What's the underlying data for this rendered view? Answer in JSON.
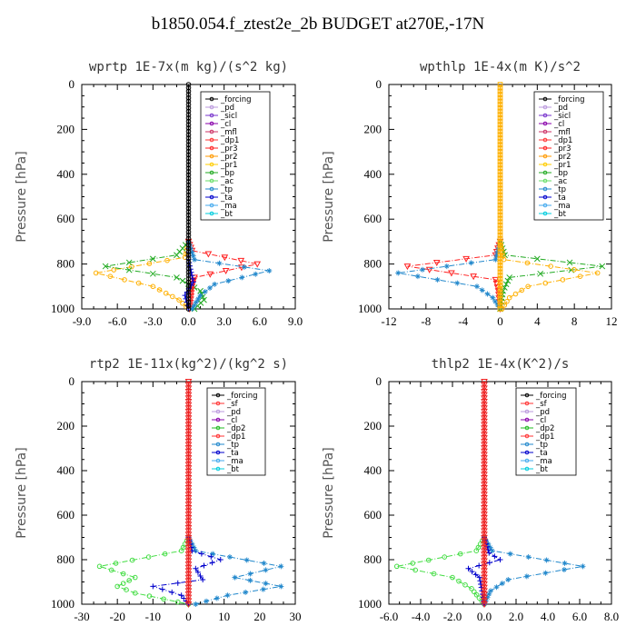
{
  "title": "b1850.054.f_ztest2e_2b  BUDGET at270E,-17N",
  "chart_data": [
    {
      "type": "line",
      "title": "wprtp  1E-7x(m kg)/(s^2 kg)",
      "ylabel": "Pressure [hPa]",
      "xlim": [
        -9,
        9
      ],
      "ylim": [
        1000,
        0
      ],
      "xticks": [
        "-9.0",
        "-6.0",
        "-3.0",
        "0.0",
        "3.0",
        "6.0",
        "9.0"
      ],
      "xtick_values": [
        -9,
        -6,
        -3,
        0,
        3,
        6,
        9
      ],
      "yticks": [
        "0",
        "200",
        "400",
        "600",
        "800",
        "1000"
      ],
      "ytick_values": [
        0,
        200,
        400,
        600,
        800,
        1000
      ],
      "legend": [
        "_forcing",
        "_pd",
        "_sicl",
        "_cl",
        "_mfl",
        "_dp1",
        "_pr3",
        "_pr2",
        "_pr1",
        "_bp",
        "_ac",
        "_tp",
        "_ta",
        "_ma",
        "_bt"
      ],
      "series": [
        {
          "name": "_pr1",
          "color": "#ffb000",
          "marker": "circle",
          "points": [
            [
              0,
              700
            ],
            [
              -0.3,
              770
            ],
            [
              -7.8,
              840
            ],
            [
              -3,
              900
            ],
            [
              -0.8,
              960
            ],
            [
              -0.2,
              990
            ],
            [
              0,
              1000
            ]
          ]
        },
        {
          "name": "_bp",
          "color": "#22aa22",
          "marker": "x",
          "points": [
            [
              0,
              700
            ],
            [
              -1,
              760
            ],
            [
              -7,
              810
            ],
            [
              -1,
              860
            ],
            [
              1,
              920
            ],
            [
              1.3,
              960
            ],
            [
              0.5,
              1000
            ]
          ]
        },
        {
          "name": "_pr3",
          "color": "#ff2222",
          "marker": "triangle",
          "points": [
            [
              0,
              700
            ],
            [
              0.3,
              740
            ],
            [
              5.8,
              800
            ],
            [
              0.5,
              860
            ],
            [
              0.3,
              900
            ],
            [
              0.1,
              1000
            ]
          ]
        },
        {
          "name": "_ta",
          "color": "#0000cc",
          "marker": "plus",
          "points": [
            [
              0,
              700
            ],
            [
              0,
              780
            ],
            [
              0.4,
              880
            ],
            [
              -0.3,
              940
            ],
            [
              0,
              1000
            ]
          ]
        },
        {
          "name": "_tp",
          "color": "#2288cc",
          "marker": "asterisk",
          "points": [
            [
              0,
              700
            ],
            [
              0.5,
              780
            ],
            [
              6.8,
              830
            ],
            [
              2.2,
              890
            ],
            [
              1,
              940
            ],
            [
              0.3,
              1000
            ]
          ]
        },
        {
          "name": "_forcing",
          "color": "#000000",
          "marker": "circle",
          "points": [
            [
              0,
              0
            ],
            [
              0,
              1000
            ]
          ]
        }
      ]
    },
    {
      "type": "line",
      "title": "wpthlp  1E-4x(m K)/s^2",
      "ylabel": "Pressure [hPa]",
      "xlim": [
        -12,
        12
      ],
      "ylim": [
        1000,
        0
      ],
      "xticks": [
        "-12",
        "-8",
        "-4",
        "0",
        "4",
        "8",
        "12"
      ],
      "xtick_values": [
        -12,
        -8,
        -4,
        0,
        4,
        8,
        12
      ],
      "yticks": [
        "0",
        "200",
        "400",
        "600",
        "800",
        "1000"
      ],
      "ytick_values": [
        0,
        200,
        400,
        600,
        800,
        1000
      ],
      "legend": [
        "_forcing",
        "_pd",
        "_sicl",
        "_cl",
        "_mfl",
        "_dp1",
        "_pr3",
        "_pr2",
        "_pr1",
        "_bp",
        "_ac",
        "_tp",
        "_ta",
        "_ma",
        "_bt"
      ],
      "series": [
        {
          "name": "_pr3",
          "color": "#ff2222",
          "marker": "triangle",
          "points": [
            [
              0,
              700
            ],
            [
              -0.5,
              760
            ],
            [
              -10,
              810
            ],
            [
              -0.5,
              870
            ],
            [
              -0.2,
              920
            ],
            [
              0,
              1000
            ]
          ]
        },
        {
          "name": "_tp",
          "color": "#2288cc",
          "marker": "asterisk",
          "points": [
            [
              0,
              700
            ],
            [
              -0.5,
              780
            ],
            [
              -11,
              840
            ],
            [
              -2.5,
              900
            ],
            [
              -0.8,
              950
            ],
            [
              0,
              1000
            ]
          ]
        },
        {
          "name": "_bp",
          "color": "#22aa22",
          "marker": "x",
          "points": [
            [
              0,
              700
            ],
            [
              0.5,
              760
            ],
            [
              11,
              810
            ],
            [
              1,
              860
            ],
            [
              0.3,
              920
            ],
            [
              0,
              1000
            ]
          ]
        },
        {
          "name": "_pr1",
          "color": "#ffb000",
          "marker": "circle",
          "points": [
            [
              0,
              700
            ],
            [
              0.4,
              780
            ],
            [
              10.5,
              840
            ],
            [
              3,
              900
            ],
            [
              1,
              950
            ],
            [
              0.2,
              1000
            ]
          ]
        },
        {
          "name": "_forcing",
          "color": "#ffb000",
          "marker": "square",
          "points": [
            [
              0,
              0
            ],
            [
              0,
              1000
            ]
          ]
        }
      ]
    },
    {
      "type": "line",
      "title": "rtp2  1E-11x(kg^2)/(kg^2 s)",
      "ylabel": "Pressure [hPa]",
      "xlim": [
        -30,
        30
      ],
      "ylim": [
        1000,
        0
      ],
      "xticks": [
        "-30",
        "-20",
        "-10",
        "0",
        "10",
        "20",
        "30"
      ],
      "xtick_values": [
        -30,
        -20,
        -10,
        0,
        10,
        20,
        30
      ],
      "yticks": [
        "0",
        "200",
        "400",
        "600",
        "800",
        "1000"
      ],
      "ytick_values": [
        0,
        200,
        400,
        600,
        800,
        1000
      ],
      "legend": [
        "_forcing",
        "_sf",
        "_pd",
        "_cl",
        "_dp2",
        "_dp1",
        "_tp",
        "_ta",
        "_ma",
        "_bt"
      ],
      "series": [
        {
          "name": "_dp1",
          "color": "#44dd44",
          "marker": "circle",
          "points": [
            [
              0,
              700
            ],
            [
              -2,
              760
            ],
            [
              -25,
              830
            ],
            [
              -15,
              880
            ],
            [
              -20,
              920
            ],
            [
              -15,
              950
            ],
            [
              -3,
              990
            ],
            [
              0,
              1000
            ]
          ]
        },
        {
          "name": "_tp",
          "color": "#2288cc",
          "marker": "asterisk",
          "points": [
            [
              0,
              700
            ],
            [
              2,
              760
            ],
            [
              26,
              830
            ],
            [
              13,
              880
            ],
            [
              26,
              920
            ],
            [
              11,
              960
            ],
            [
              2,
              1000
            ]
          ]
        },
        {
          "name": "_ta",
          "color": "#0000cc",
          "marker": "plus",
          "points": [
            [
              0,
              700
            ],
            [
              1,
              760
            ],
            [
              9,
              800
            ],
            [
              2,
              840
            ],
            [
              4,
              890
            ],
            [
              -10,
              920
            ],
            [
              -2,
              960
            ],
            [
              0,
              1000
            ]
          ]
        },
        {
          "name": "_forcing",
          "color": "#ee2222",
          "marker": "triangle",
          "points": [
            [
              0,
              0
            ],
            [
              0,
              1000
            ]
          ]
        }
      ]
    },
    {
      "type": "line",
      "title": "thlp2  1E-4x(K^2)/s",
      "ylabel": "Pressure [hPa]",
      "xlim": [
        -6,
        8
      ],
      "ylim": [
        1000,
        0
      ],
      "xticks": [
        "-6.0",
        "-4.0",
        "-2.0",
        "0.0",
        "2.0",
        "4.0",
        "6.0",
        "8.0"
      ],
      "xtick_values": [
        -6,
        -4,
        -2,
        0,
        2,
        4,
        6,
        8
      ],
      "yticks": [
        "0",
        "200",
        "400",
        "600",
        "800",
        "1000"
      ],
      "ytick_values": [
        0,
        200,
        400,
        600,
        800,
        1000
      ],
      "legend": [
        "_forcing",
        "_sf",
        "_pd",
        "_cl",
        "_dp2",
        "_dp1",
        "_tp",
        "_ta",
        "_ma",
        "_bt"
      ],
      "series": [
        {
          "name": "_dp1",
          "color": "#44dd44",
          "marker": "circle",
          "points": [
            [
              0,
              700
            ],
            [
              -0.5,
              760
            ],
            [
              -5.5,
              830
            ],
            [
              -2,
              880
            ],
            [
              -0.8,
              930
            ],
            [
              0,
              1000
            ]
          ]
        },
        {
          "name": "_tp",
          "color": "#2288cc",
          "marker": "asterisk",
          "points": [
            [
              0,
              700
            ],
            [
              0.5,
              760
            ],
            [
              6.2,
              830
            ],
            [
              1.5,
              890
            ],
            [
              0.4,
              940
            ],
            [
              0,
              1000
            ]
          ]
        },
        {
          "name": "_ta",
          "color": "#0000cc",
          "marker": "plus",
          "points": [
            [
              0,
              700
            ],
            [
              0.3,
              770
            ],
            [
              1,
              800
            ],
            [
              -1,
              840
            ],
            [
              -0.3,
              880
            ],
            [
              0,
              1000
            ]
          ]
        },
        {
          "name": "_forcing",
          "color": "#ee2222",
          "marker": "triangle",
          "points": [
            [
              0,
              0
            ],
            [
              0,
              1000
            ]
          ]
        }
      ]
    }
  ]
}
